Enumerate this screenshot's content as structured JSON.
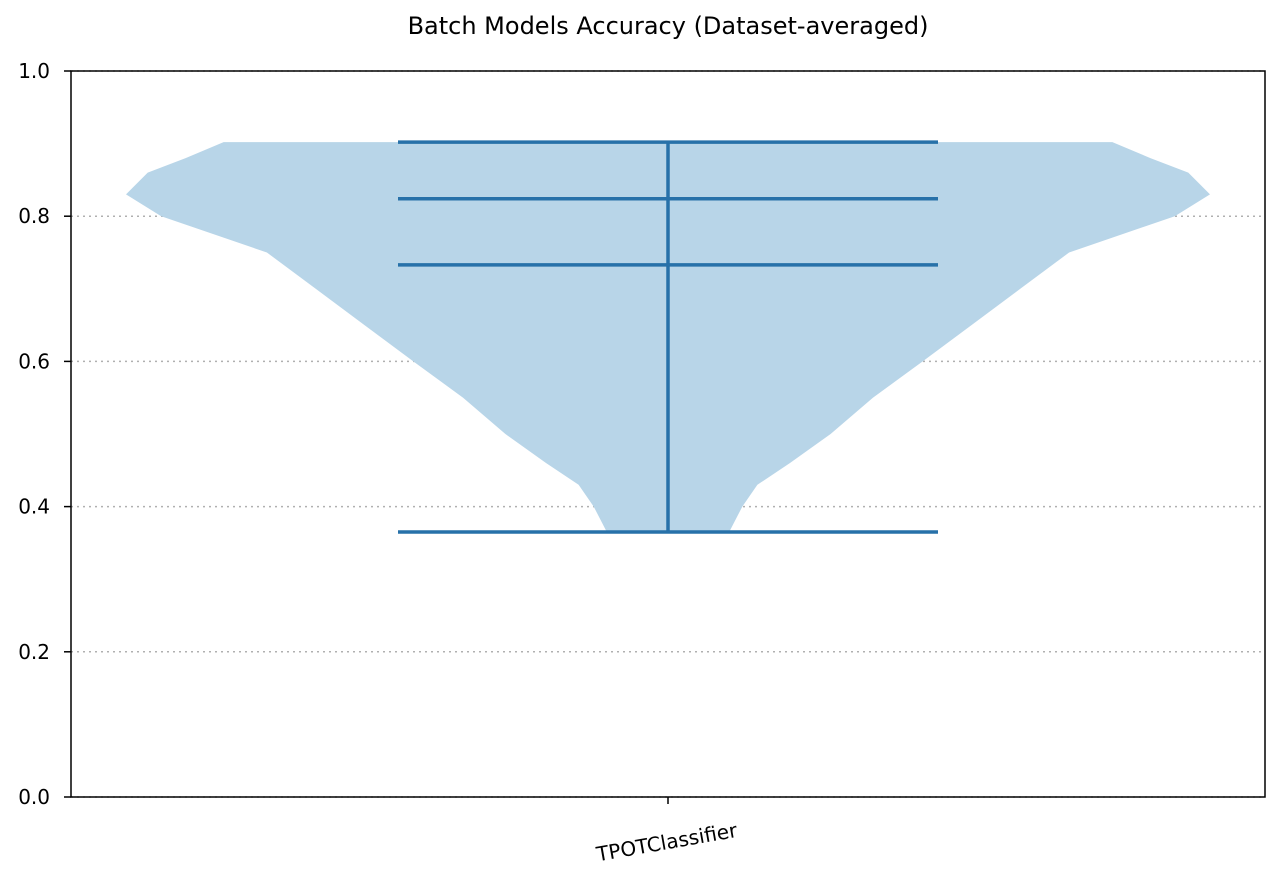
{
  "chart_data": {
    "type": "violin",
    "title": "Batch Models Accuracy (Dataset-averaged)",
    "xlabel": "",
    "ylabel": "",
    "categories": [
      "TPOTClassifier"
    ],
    "ylim": [
      0.0,
      1.0
    ],
    "yticks": [
      "0.0",
      "0.2",
      "0.4",
      "0.6",
      "0.8",
      "1.0"
    ],
    "grid": "horizontal dotted",
    "series": [
      {
        "category": "TPOTClassifier",
        "min": 0.365,
        "q1": 0.733,
        "median": 0.824,
        "max": 0.902,
        "density_profile": [
          {
            "y": 0.365,
            "half_width": 0.113
          },
          {
            "y": 0.4,
            "half_width": 0.137
          },
          {
            "y": 0.43,
            "half_width": 0.165
          },
          {
            "y": 0.46,
            "half_width": 0.225
          },
          {
            "y": 0.5,
            "half_width": 0.3
          },
          {
            "y": 0.55,
            "half_width": 0.378
          },
          {
            "y": 0.6,
            "half_width": 0.47
          },
          {
            "y": 0.65,
            "half_width": 0.56
          },
          {
            "y": 0.7,
            "half_width": 0.65
          },
          {
            "y": 0.75,
            "half_width": 0.74
          },
          {
            "y": 0.8,
            "half_width": 0.935
          },
          {
            "y": 0.83,
            "half_width": 1.0
          },
          {
            "y": 0.86,
            "half_width": 0.96
          },
          {
            "y": 0.88,
            "half_width": 0.89
          },
          {
            "y": 0.902,
            "half_width": 0.82
          }
        ]
      }
    ],
    "colors": {
      "body": "#b8d5e8",
      "lines": "#2771a9",
      "grid": "#b0b0b0",
      "axes": "#000000"
    }
  }
}
